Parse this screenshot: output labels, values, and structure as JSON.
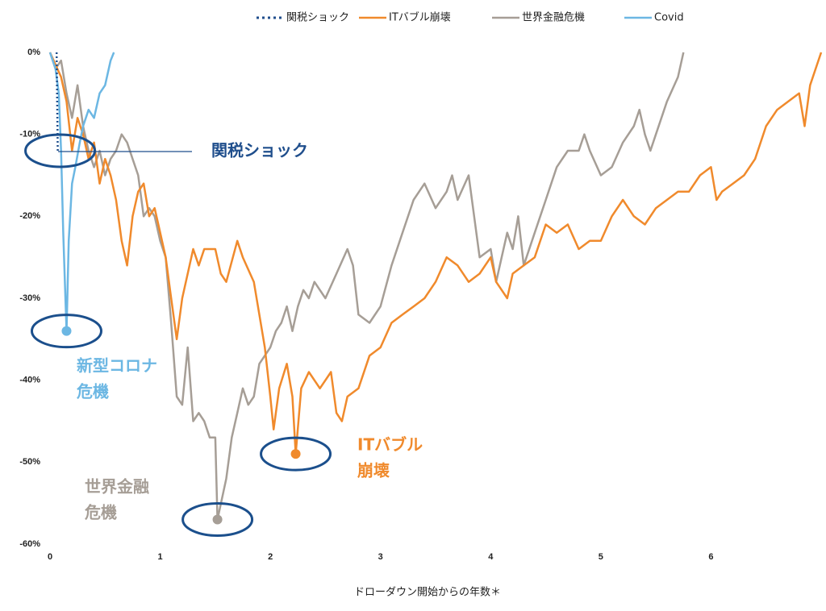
{
  "chart_data": {
    "type": "line",
    "x_label": "ドローダウン開始からの年数＊",
    "xlim": [
      0,
      7
    ],
    "xticks": [
      0,
      1,
      2,
      3,
      4,
      5,
      6
    ],
    "ylim": [
      -60,
      0
    ],
    "yticks": [
      {
        "value": 0,
        "label": "0%"
      },
      {
        "value": -10,
        "label": "-10%"
      },
      {
        "value": -20,
        "label": "-20%"
      },
      {
        "value": -30,
        "label": "-30%"
      },
      {
        "value": -40,
        "label": "-40%"
      },
      {
        "value": -50,
        "label": "-50%"
      },
      {
        "value": -60,
        "label": "-60%"
      }
    ],
    "grid": false,
    "legend": "top",
    "series": [
      {
        "name": "関税ショック",
        "color": "#1f4e8c",
        "dash": "dotted",
        "marker_at_min": false,
        "x": [
          0.06,
          0.065,
          0.07
        ],
        "values": [
          0,
          -6,
          -12
        ]
      },
      {
        "name": "ITバブル崩壊",
        "color": "#f08a2c",
        "dash": "solid",
        "marker_at_min": true,
        "x": [
          0,
          0.1,
          0.15,
          0.2,
          0.25,
          0.3,
          0.35,
          0.4,
          0.45,
          0.5,
          0.55,
          0.6,
          0.65,
          0.7,
          0.75,
          0.8,
          0.85,
          0.9,
          0.95,
          1.0,
          1.05,
          1.1,
          1.15,
          1.2,
          1.25,
          1.3,
          1.35,
          1.4,
          1.5,
          1.55,
          1.6,
          1.7,
          1.75,
          1.85,
          1.9,
          1.95,
          2.0,
          2.03,
          2.08,
          2.15,
          2.2,
          2.23,
          2.28,
          2.35,
          2.45,
          2.55,
          2.6,
          2.65,
          2.7,
          2.8,
          2.9,
          3.0,
          3.1,
          3.2,
          3.3,
          3.4,
          3.5,
          3.6,
          3.7,
          3.8,
          3.9,
          4.0,
          4.05,
          4.15,
          4.2,
          4.3,
          4.4,
          4.5,
          4.6,
          4.7,
          4.8,
          4.9,
          5.0,
          5.1,
          5.2,
          5.3,
          5.4,
          5.5,
          5.6,
          5.7,
          5.8,
          5.9,
          6.0,
          6.05,
          6.1,
          6.2,
          6.3,
          6.4,
          6.5,
          6.6,
          6.7,
          6.8,
          6.85,
          6.9,
          7.0
        ],
        "values": [
          0,
          -3,
          -6,
          -12,
          -8,
          -10,
          -13,
          -11,
          -16,
          -13,
          -15,
          -18,
          -23,
          -26,
          -20,
          -17,
          -16,
          -20,
          -19,
          -22,
          -25,
          -30,
          -35,
          -30,
          -27,
          -24,
          -26,
          -24,
          -24,
          -27,
          -28,
          -23,
          -25,
          -28,
          -32,
          -36,
          -42,
          -46,
          -41,
          -38,
          -42,
          -49,
          -41,
          -39,
          -41,
          -39,
          -44,
          -45,
          -42,
          -41,
          -37,
          -36,
          -33,
          -32,
          -31,
          -30,
          -28,
          -25,
          -26,
          -28,
          -27,
          -25,
          -28,
          -30,
          -27,
          -26,
          -25,
          -21,
          -22,
          -21,
          -24,
          -23,
          -23,
          -20,
          -18,
          -20,
          -21,
          -19,
          -18,
          -17,
          -17,
          -15,
          -14,
          -18,
          -17,
          -16,
          -15,
          -13,
          -9,
          -7,
          -6,
          -5,
          -9,
          -4,
          0
        ]
      },
      {
        "name": "世界金融危機",
        "color": "#a69e96",
        "dash": "solid",
        "marker_at_min": true,
        "x": [
          0,
          0.05,
          0.1,
          0.15,
          0.2,
          0.25,
          0.3,
          0.35,
          0.4,
          0.45,
          0.5,
          0.55,
          0.6,
          0.65,
          0.7,
          0.75,
          0.8,
          0.85,
          0.9,
          0.95,
          1.0,
          1.05,
          1.1,
          1.15,
          1.2,
          1.25,
          1.3,
          1.35,
          1.4,
          1.45,
          1.5,
          1.52,
          1.6,
          1.65,
          1.7,
          1.75,
          1.8,
          1.85,
          1.9,
          1.95,
          2.0,
          2.05,
          2.1,
          2.15,
          2.2,
          2.25,
          2.3,
          2.35,
          2.4,
          2.5,
          2.6,
          2.7,
          2.75,
          2.8,
          2.9,
          3.0,
          3.1,
          3.2,
          3.3,
          3.4,
          3.5,
          3.6,
          3.65,
          3.7,
          3.8,
          3.9,
          4.0,
          4.05,
          4.1,
          4.15,
          4.2,
          4.25,
          4.3,
          4.4,
          4.5,
          4.6,
          4.7,
          4.8,
          4.85,
          4.9,
          5.0,
          5.1,
          5.2,
          5.3,
          5.35,
          5.4,
          5.45,
          5.5,
          5.6,
          5.7,
          5.75
        ],
        "values": [
          0,
          -2,
          -1,
          -5,
          -8,
          -4,
          -9,
          -12,
          -14,
          -12,
          -15,
          -13,
          -12,
          -10,
          -11,
          -13,
          -15,
          -20,
          -19,
          -20,
          -23,
          -25,
          -33,
          -42,
          -43,
          -36,
          -45,
          -44,
          -45,
          -47,
          -47,
          -57,
          -52,
          -47,
          -44,
          -41,
          -43,
          -42,
          -38,
          -37,
          -36,
          -34,
          -33,
          -31,
          -34,
          -31,
          -29,
          -30,
          -28,
          -30,
          -27,
          -24,
          -26,
          -32,
          -33,
          -31,
          -26,
          -22,
          -18,
          -16,
          -19,
          -17,
          -15,
          -18,
          -15,
          -25,
          -24,
          -28,
          -25,
          -22,
          -24,
          -20,
          -26,
          -22,
          -18,
          -14,
          -12,
          -12,
          -10,
          -12,
          -15,
          -14,
          -11,
          -9,
          -7,
          -10,
          -12,
          -10,
          -6,
          -3,
          0
        ]
      },
      {
        "name": "Covid",
        "color": "#6cb7e3",
        "dash": "solid",
        "marker_at_min": true,
        "x": [
          0,
          0.05,
          0.08,
          0.1,
          0.12,
          0.14,
          0.15,
          0.17,
          0.2,
          0.23,
          0.27,
          0.3,
          0.35,
          0.4,
          0.45,
          0.5,
          0.55,
          0.58
        ],
        "values": [
          0,
          -2,
          -5,
          -12,
          -22,
          -30,
          -34,
          -23,
          -16,
          -14,
          -11,
          -9,
          -7,
          -8,
          -5,
          -4,
          -1,
          0
        ]
      }
    ],
    "annotations": [
      {
        "text": [
          "関税ショック"
        ],
        "color": "#1f4e8c"
      },
      {
        "text": [
          "新型コロナ",
          "危機"
        ],
        "color": "#6cb7e3"
      },
      {
        "text": [
          "世界金融",
          "危機"
        ],
        "color": "#a69e96"
      },
      {
        "text": [
          "ITバブル",
          "崩壊"
        ],
        "color": "#f08a2c"
      }
    ]
  }
}
